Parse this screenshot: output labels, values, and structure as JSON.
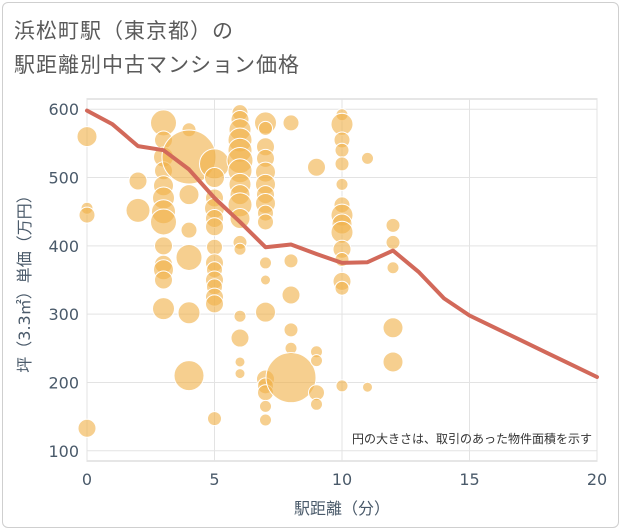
{
  "title_line1": "浜松町駅（東京都）の",
  "title_line2": "駅距離別中古マンション価格",
  "chart_data": {
    "type": "scatter",
    "xlabel": "駅距離（分）",
    "ylabel": "坪（3.3㎡）単価（万円）",
    "xlim": [
      0,
      20
    ],
    "ylim": [
      85,
      615
    ],
    "x_ticks": [
      0,
      5,
      10,
      15,
      20
    ],
    "y_ticks": [
      100,
      200,
      300,
      400,
      500,
      600
    ],
    "grid": true,
    "annotation": "円の大きさは、取引のあった物件面積を示す",
    "bubble_color": "#f0b24a",
    "line_color": "#d2695a",
    "trend_line": {
      "x": [
        0,
        1,
        2,
        3,
        4,
        5,
        6,
        7,
        8,
        9,
        10,
        11,
        12,
        13,
        14,
        15,
        16,
        17,
        18,
        19,
        20
      ],
      "y": [
        598,
        578,
        546,
        540,
        512,
        470,
        435,
        398,
        402,
        388,
        375,
        376,
        393,
        362,
        323,
        298,
        280,
        262,
        244,
        226,
        208
      ]
    },
    "bubbles": [
      {
        "x": 0,
        "y": 560,
        "s": 10
      },
      {
        "x": 0,
        "y": 455,
        "s": 6
      },
      {
        "x": 0,
        "y": 445,
        "s": 8
      },
      {
        "x": 0,
        "y": 133,
        "s": 9
      },
      {
        "x": 2,
        "y": 495,
        "s": 9
      },
      {
        "x": 2,
        "y": 452,
        "s": 12
      },
      {
        "x": 3,
        "y": 580,
        "s": 13
      },
      {
        "x": 3,
        "y": 555,
        "s": 9
      },
      {
        "x": 3,
        "y": 530,
        "s": 10
      },
      {
        "x": 3,
        "y": 510,
        "s": 9
      },
      {
        "x": 3,
        "y": 488,
        "s": 10
      },
      {
        "x": 3,
        "y": 470,
        "s": 11
      },
      {
        "x": 3,
        "y": 450,
        "s": 12
      },
      {
        "x": 3,
        "y": 435,
        "s": 13
      },
      {
        "x": 3,
        "y": 400,
        "s": 9
      },
      {
        "x": 3,
        "y": 373,
        "s": 9
      },
      {
        "x": 3,
        "y": 365,
        "s": 10
      },
      {
        "x": 3,
        "y": 350,
        "s": 9
      },
      {
        "x": 3,
        "y": 308,
        "s": 11
      },
      {
        "x": 4,
        "y": 570,
        "s": 7
      },
      {
        "x": 4,
        "y": 530,
        "s": 27
      },
      {
        "x": 4,
        "y": 475,
        "s": 10
      },
      {
        "x": 4,
        "y": 423,
        "s": 8
      },
      {
        "x": 4,
        "y": 383,
        "s": 13
      },
      {
        "x": 4,
        "y": 302,
        "s": 11
      },
      {
        "x": 4,
        "y": 210,
        "s": 15
      },
      {
        "x": 5,
        "y": 520,
        "s": 15
      },
      {
        "x": 5,
        "y": 500,
        "s": 10
      },
      {
        "x": 5,
        "y": 470,
        "s": 9
      },
      {
        "x": 5,
        "y": 455,
        "s": 10
      },
      {
        "x": 5,
        "y": 440,
        "s": 9
      },
      {
        "x": 5,
        "y": 428,
        "s": 9
      },
      {
        "x": 5,
        "y": 398,
        "s": 8
      },
      {
        "x": 5,
        "y": 375,
        "s": 9
      },
      {
        "x": 5,
        "y": 365,
        "s": 8
      },
      {
        "x": 5,
        "y": 350,
        "s": 9
      },
      {
        "x": 5,
        "y": 340,
        "s": 8
      },
      {
        "x": 5,
        "y": 325,
        "s": 9
      },
      {
        "x": 5,
        "y": 315,
        "s": 9
      },
      {
        "x": 5,
        "y": 147,
        "s": 7
      },
      {
        "x": 6,
        "y": 595,
        "s": 8
      },
      {
        "x": 6,
        "y": 585,
        "s": 9
      },
      {
        "x": 6,
        "y": 570,
        "s": 11
      },
      {
        "x": 6,
        "y": 555,
        "s": 12
      },
      {
        "x": 6,
        "y": 540,
        "s": 12
      },
      {
        "x": 6,
        "y": 525,
        "s": 13
      },
      {
        "x": 6,
        "y": 510,
        "s": 12
      },
      {
        "x": 6,
        "y": 490,
        "s": 11
      },
      {
        "x": 6,
        "y": 475,
        "s": 10
      },
      {
        "x": 6,
        "y": 460,
        "s": 12
      },
      {
        "x": 6,
        "y": 440,
        "s": 10
      },
      {
        "x": 6,
        "y": 405,
        "s": 7
      },
      {
        "x": 6,
        "y": 395,
        "s": 6
      },
      {
        "x": 6,
        "y": 297,
        "s": 6
      },
      {
        "x": 6,
        "y": 265,
        "s": 9
      },
      {
        "x": 6,
        "y": 230,
        "s": 5
      },
      {
        "x": 6,
        "y": 213,
        "s": 5
      },
      {
        "x": 7,
        "y": 580,
        "s": 11
      },
      {
        "x": 7,
        "y": 572,
        "s": 7
      },
      {
        "x": 7,
        "y": 545,
        "s": 9
      },
      {
        "x": 7,
        "y": 528,
        "s": 9
      },
      {
        "x": 7,
        "y": 508,
        "s": 10
      },
      {
        "x": 7,
        "y": 490,
        "s": 10
      },
      {
        "x": 7,
        "y": 475,
        "s": 9
      },
      {
        "x": 7,
        "y": 462,
        "s": 10
      },
      {
        "x": 7,
        "y": 448,
        "s": 8
      },
      {
        "x": 7,
        "y": 435,
        "s": 8
      },
      {
        "x": 7,
        "y": 375,
        "s": 6
      },
      {
        "x": 7,
        "y": 350,
        "s": 5
      },
      {
        "x": 7,
        "y": 303,
        "s": 10
      },
      {
        "x": 7,
        "y": 205,
        "s": 9
      },
      {
        "x": 7,
        "y": 195,
        "s": 8
      },
      {
        "x": 7,
        "y": 185,
        "s": 8
      },
      {
        "x": 7,
        "y": 165,
        "s": 6
      },
      {
        "x": 7,
        "y": 145,
        "s": 6
      },
      {
        "x": 8,
        "y": 580,
        "s": 8
      },
      {
        "x": 8,
        "y": 378,
        "s": 7
      },
      {
        "x": 8,
        "y": 328,
        "s": 9
      },
      {
        "x": 8,
        "y": 277,
        "s": 7
      },
      {
        "x": 8,
        "y": 250,
        "s": 6
      },
      {
        "x": 8,
        "y": 207,
        "s": 25
      },
      {
        "x": 9,
        "y": 515,
        "s": 9
      },
      {
        "x": 9,
        "y": 245,
        "s": 6
      },
      {
        "x": 9,
        "y": 232,
        "s": 6
      },
      {
        "x": 9,
        "y": 185,
        "s": 8
      },
      {
        "x": 9,
        "y": 168,
        "s": 6
      },
      {
        "x": 10,
        "y": 592,
        "s": 6
      },
      {
        "x": 10,
        "y": 578,
        "s": 11
      },
      {
        "x": 10,
        "y": 555,
        "s": 8
      },
      {
        "x": 10,
        "y": 540,
        "s": 7
      },
      {
        "x": 10,
        "y": 520,
        "s": 7
      },
      {
        "x": 10,
        "y": 490,
        "s": 6
      },
      {
        "x": 10,
        "y": 460,
        "s": 8
      },
      {
        "x": 10,
        "y": 445,
        "s": 11
      },
      {
        "x": 10,
        "y": 432,
        "s": 10
      },
      {
        "x": 10,
        "y": 420,
        "s": 11
      },
      {
        "x": 10,
        "y": 395,
        "s": 9
      },
      {
        "x": 10,
        "y": 380,
        "s": 7
      },
      {
        "x": 10,
        "y": 348,
        "s": 9
      },
      {
        "x": 10,
        "y": 338,
        "s": 7
      },
      {
        "x": 10,
        "y": 195,
        "s": 6
      },
      {
        "x": 11,
        "y": 528,
        "s": 6
      },
      {
        "x": 11,
        "y": 193,
        "s": 5
      },
      {
        "x": 12,
        "y": 430,
        "s": 7
      },
      {
        "x": 12,
        "y": 405,
        "s": 7
      },
      {
        "x": 12,
        "y": 368,
        "s": 6
      },
      {
        "x": 12,
        "y": 280,
        "s": 10
      },
      {
        "x": 12,
        "y": 230,
        "s": 10
      }
    ]
  }
}
